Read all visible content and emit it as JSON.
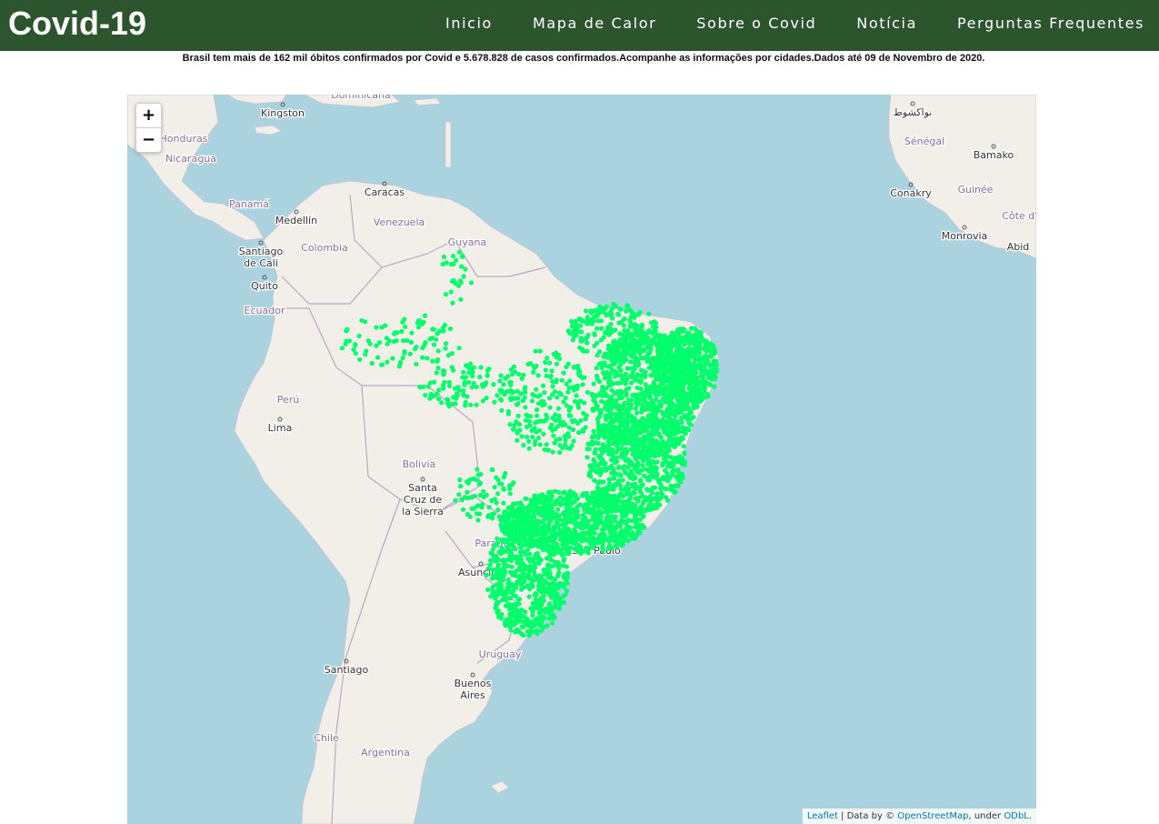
{
  "header": {
    "brand": "Covid-19",
    "nav": [
      {
        "label": "Inicio"
      },
      {
        "label": "Mapa de Calor"
      },
      {
        "label": "Sobre o Covid"
      },
      {
        "label": "Notícia"
      },
      {
        "label": "Perguntas Frequentes"
      }
    ]
  },
  "headline": "Brasil tem mais de 162 mil óbitos confirmados por Covid e 5.678.828 de casos confirmados.Acompanhe as informações por cidades.Dados até 09 de Novembro de 2020.",
  "map": {
    "zoom_in": "+",
    "zoom_out": "−",
    "attribution": {
      "leaflet": "Leaflet",
      "sep": " | Data by © ",
      "osm": "OpenStreetMap",
      "under": ", under ",
      "odbl": "ODbL",
      "end": "."
    },
    "country_labels": [
      "Dominicana",
      "Honduras",
      "Nicaragua",
      "Panamá",
      "Venezuela",
      "Colombia",
      "Guyana",
      "Ecuador",
      "Perú",
      "Bolivia",
      "Paraguay",
      "Uruguay",
      "Chile",
      "Argentina",
      "Sénégal",
      "Guinée",
      "Côte d'Ivo"
    ],
    "city_labels": [
      "Kingston",
      "Caracas",
      "Medellín",
      "Santiago de Cali",
      "Quito",
      "Lima",
      "Santa Cruz de la Sierra",
      "Asunción",
      "Santiago",
      "Buenos Aires",
      "São Paulo",
      "نواكشوط",
      "Bamako",
      "Conakry",
      "Monrovia",
      "Abid"
    ],
    "marker_color": "#00ff6a",
    "water_color": "#aad3df",
    "land_color": "#f2efe9"
  }
}
